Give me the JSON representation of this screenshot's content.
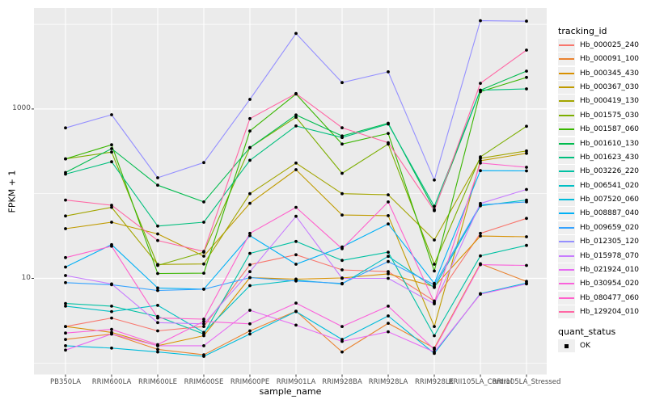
{
  "figure": {
    "y_axis": {
      "label": "FPKM + 1",
      "ticks": [
        {
          "label": "1000",
          "value": 1000
        },
        {
          "label": "10",
          "value": 10
        }
      ],
      "minor_gridlines": [
        1,
        100,
        10000
      ]
    },
    "x_axis": {
      "label": "sample_name"
    },
    "legend": {
      "tracking_title": "tracking_id",
      "quant_title": "quant_status",
      "quant_label": "OK"
    },
    "colors": {
      "panel_background": "#EBEBEB",
      "gridline": "#FFFFFF",
      "tick_text": "#4D4D4D",
      "point": "#000000"
    }
  },
  "chart_data": {
    "type": "line",
    "y_scale": "log10",
    "title": "",
    "xlabel": "sample_name",
    "ylabel": "FPKM + 1",
    "ylim": [
      0.7,
      15000
    ],
    "grid": true,
    "legend_position": "right",
    "point_marker": "black dot at every x for every series",
    "quant_status": "OK",
    "categories": [
      "PB350LA",
      "RRIM600LA",
      "RRIM600LE",
      "RRIM600SE",
      "RRIM600PE",
      "RRIM901LA",
      "RRIM928BA",
      "RRIM928LA",
      "RRIM928LE",
      "RRII105LA_Control",
      "RRII105LA_Stressed"
    ],
    "series": [
      {
        "name": "Hb_000025_240",
        "color": "#F8766D",
        "values": [
          2.7,
          3.4,
          2.4,
          2.7,
          14.5,
          19,
          12.6,
          12,
          5.4,
          34,
          51
        ]
      },
      {
        "name": "Hb_000091_100",
        "color": "#EA8331",
        "values": [
          1.9,
          2.2,
          1.45,
          1.25,
          2.4,
          4.1,
          1.35,
          2.95,
          1.5,
          14.9,
          9.2
        ]
      },
      {
        "name": "Hb_000345_430",
        "color": "#D89000",
        "values": [
          2.7,
          2.3,
          1.6,
          2.1,
          10.2,
          9.8,
          10.1,
          11.3,
          8.0,
          31.6,
          31
        ]
      },
      {
        "name": "Hb_000367_030",
        "color": "#C09B00",
        "values": [
          38.6,
          46,
          33.5,
          18.3,
          77,
          192,
          56,
          55,
          2.7,
          245,
          300
        ]
      },
      {
        "name": "Hb_000419_130",
        "color": "#A3A500",
        "values": [
          54.5,
          69,
          14.6,
          14.8,
          100,
          230,
          100,
          97,
          28.4,
          262,
          320
        ]
      },
      {
        "name": "Hb_001575_030",
        "color": "#7CAE00",
        "values": [
          258,
          310,
          14.2,
          20.4,
          350,
          800,
          174,
          385,
          14.7,
          272,
          625
        ]
      },
      {
        "name": "Hb_001587_060",
        "color": "#39B600",
        "values": [
          258,
          378,
          11.4,
          11.5,
          550,
          1500,
          385,
          515,
          12.2,
          1600,
          2360
        ]
      },
      {
        "name": "Hb_001610_130",
        "color": "#00BB4E",
        "values": [
          178,
          340,
          126,
          80,
          350,
          850,
          480,
          680,
          65,
          1670,
          2800
        ]
      },
      {
        "name": "Hb_001623_430",
        "color": "#00BF7D",
        "values": [
          170,
          238,
          41.4,
          46,
          248,
          630,
          460,
          665,
          71,
          1670,
          1730
        ]
      },
      {
        "name": "Hb_003226_220",
        "color": "#00C1A3",
        "values": [
          5.05,
          4.7,
          3.55,
          2.2,
          19.7,
          27.3,
          16.3,
          20.4,
          2.1,
          18.4,
          24.5
        ]
      },
      {
        "name": "Hb_006541_020",
        "color": "#00BFC4",
        "values": [
          4.7,
          4.05,
          4.8,
          2.3,
          8.2,
          9.5,
          8.6,
          18.2,
          7.8,
          72,
          84
        ]
      },
      {
        "name": "Hb_007520_060",
        "color": "#00BBDA",
        "values": [
          1.6,
          1.5,
          1.35,
          1.2,
          2.2,
          4.05,
          1.9,
          3.6,
          1.3,
          6.6,
          8.8
        ]
      },
      {
        "name": "Hb_008887_040",
        "color": "#00B0F6",
        "values": [
          13.6,
          25,
          7.7,
          7.45,
          32,
          14.7,
          23.5,
          44,
          8.7,
          187,
          186
        ]
      },
      {
        "name": "Hb_009659_020",
        "color": "#35A2FF",
        "values": [
          8.9,
          8.4,
          7.2,
          7.45,
          10.2,
          9.3,
          8.7,
          15.8,
          8.4,
          74,
          80
        ]
      },
      {
        "name": "Hb_012305_120",
        "color": "#9590FF",
        "values": [
          598,
          855,
          154,
          233,
          1300,
          7800,
          2050,
          2750,
          145,
          11050,
          10900
        ]
      },
      {
        "name": "Hb_015978_070",
        "color": "#C77CFF",
        "values": [
          10.8,
          8.6,
          3.0,
          2.9,
          12,
          54,
          10,
          10,
          5.0,
          76.6,
          112
        ]
      },
      {
        "name": "Hb_021924_010",
        "color": "#E76BF3",
        "values": [
          1.42,
          2.2,
          1.6,
          1.6,
          4.2,
          2.8,
          1.8,
          2.34,
          1.35,
          6.5,
          8.6
        ]
      },
      {
        "name": "Hb_030954_020",
        "color": "#FA62DB",
        "values": [
          2.26,
          2.5,
          1.65,
          3.1,
          2.9,
          5.1,
          2.7,
          4.7,
          1.45,
          14.5,
          14.2
        ]
      },
      {
        "name": "Hb_080477_060",
        "color": "#FF61CC",
        "values": [
          17.6,
          24,
          3.4,
          3.3,
          34,
          69,
          22.4,
          80,
          5.2,
          230,
          205
        ]
      },
      {
        "name": "Hb_129204_010",
        "color": "#FF67A4",
        "values": [
          84,
          73,
          28,
          20.8,
          770,
          1520,
          600,
          400,
          63,
          2010,
          4960
        ]
      }
    ]
  }
}
